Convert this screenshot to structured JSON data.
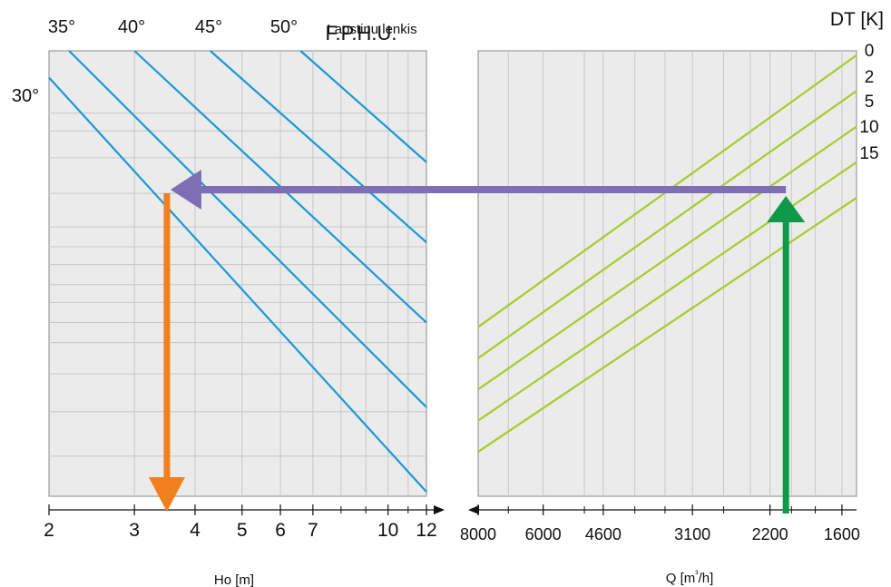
{
  "chart_data": {
    "type": "line",
    "title": "F.P.H.U.",
    "title_overlay": "Lapstinu lenkis",
    "left_panel": {
      "xlabel": "Ho  [m]",
      "x_ticks": [
        "2",
        "3",
        "4",
        "5",
        "6",
        "7",
        "10",
        "12"
      ],
      "x_scale": "log",
      "x_range": [
        2,
        12
      ],
      "angle_labels": [
        "30°",
        "35°",
        "40°",
        "45°",
        "50°"
      ],
      "series": [
        {
          "name": "30°",
          "points": [
            [
              2,
              0.06
            ],
            [
              12,
              0.99
            ]
          ]
        },
        {
          "name": "35°",
          "points": [
            [
              2.2,
              0.0
            ],
            [
              12,
              0.8
            ]
          ]
        },
        {
          "name": "40°",
          "points": [
            [
              3.0,
              0.0
            ],
            [
              12,
              0.61
            ]
          ]
        },
        {
          "name": "45°",
          "points": [
            [
              4.3,
              0.0
            ],
            [
              12,
              0.43
            ]
          ]
        },
        {
          "name": "50°",
          "points": [
            [
              6.6,
              0.0
            ],
            [
              12,
              0.25
            ]
          ]
        }
      ],
      "line_color": "#1a9ad6"
    },
    "right_panel": {
      "xlabel": "Q [m³/h]",
      "x_ticks": [
        "8000",
        "6000",
        "4600",
        "3100",
        "2200",
        "1600"
      ],
      "x_scale": "log-reversed",
      "x_range": [
        8000,
        1500
      ],
      "dt_title": "DT [K]",
      "dt_labels": [
        "0",
        "2",
        "5",
        "10",
        "15"
      ],
      "series": [
        {
          "name": "0",
          "points": [
            [
              8000,
              0.62
            ],
            [
              1500,
              0.01
            ]
          ]
        },
        {
          "name": "2",
          "points": [
            [
              8000,
              0.69
            ],
            [
              1500,
              0.09
            ]
          ]
        },
        {
          "name": "5",
          "points": [
            [
              8000,
              0.76
            ],
            [
              1500,
              0.17
            ]
          ]
        },
        {
          "name": "10",
          "points": [
            [
              8000,
              0.83
            ],
            [
              1500,
              0.25
            ]
          ]
        },
        {
          "name": "15",
          "points": [
            [
              8000,
              0.9
            ],
            [
              1500,
              0.33
            ]
          ]
        }
      ],
      "line_color": "#a8cc2a"
    },
    "example_path": {
      "q_start": 2050,
      "dt": 15,
      "ho_result": 3.5,
      "arrows": [
        {
          "name": "up",
          "color": "#0f9a4a"
        },
        {
          "name": "left",
          "color": "#7d6fb4"
        },
        {
          "name": "down",
          "color": "#f07f1e"
        }
      ]
    },
    "grid": true,
    "background": "#ebebeb"
  }
}
